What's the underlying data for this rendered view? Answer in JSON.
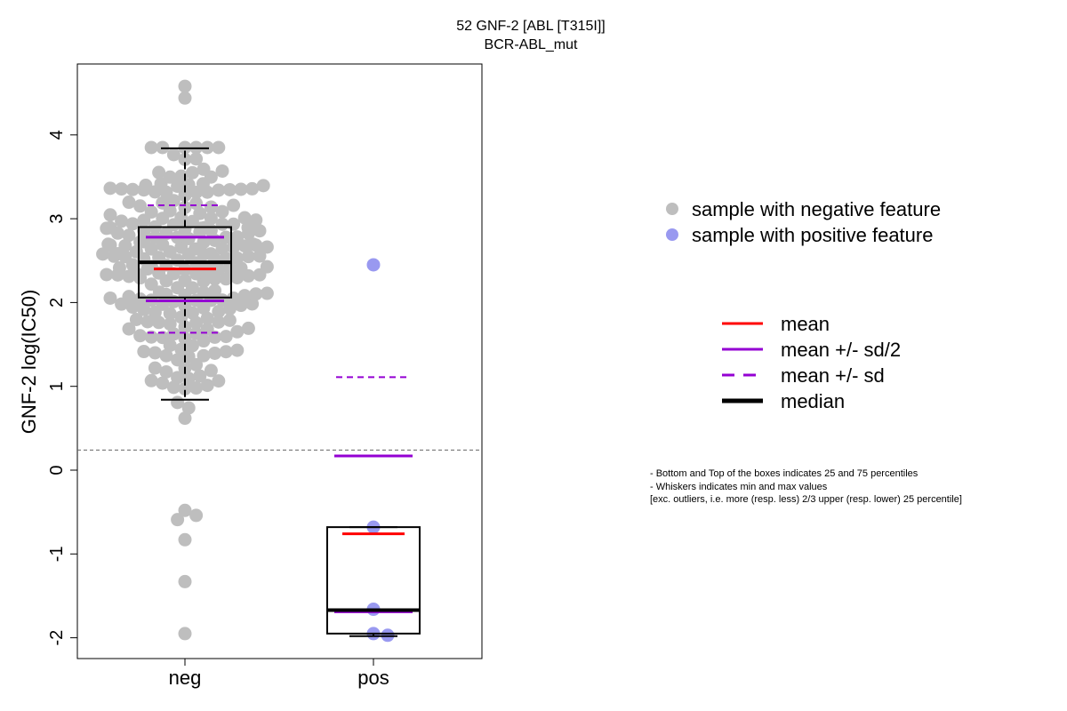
{
  "chart_data": {
    "type": "scatter",
    "title": "52 GNF-2 [ABL [T315I]]",
    "subtitle": "BCR-ABL_mut",
    "ylabel": "GNF-2 log(IC50)",
    "xlabel": "",
    "categories": [
      "neg",
      "pos"
    ],
    "ylim": [
      -2.25,
      4.8
    ],
    "yticks": [
      -2,
      -1,
      0,
      1,
      2,
      3,
      4
    ],
    "threshold": 0.24,
    "grid": false,
    "legend_position": "right",
    "colors": {
      "neg": "#bebebe",
      "pos": "#9999f0",
      "mean": "#ff0000",
      "sd": "#9400d3",
      "median": "#000000",
      "threshold": "#666666"
    },
    "groups": [
      {
        "name": "neg",
        "box": {
          "q1": 2.06,
          "median": 2.48,
          "q3": 2.9,
          "whisker_low": 0.84,
          "whisker_high": 3.84
        },
        "mean": 2.4,
        "mean_minus_half_sd": 2.02,
        "mean_plus_half_sd": 2.78,
        "mean_minus_sd": 1.64,
        "mean_plus_sd": 3.16,
        "outliers": [
          4.58,
          4.44,
          -0.48,
          -0.54,
          -0.59,
          -0.83,
          -1.33,
          -1.95
        ]
      },
      {
        "name": "pos",
        "box": {
          "q1": -1.95,
          "median": -1.67,
          "q3": -0.68,
          "whisker_low": -1.98,
          "whisker_high": -0.68
        },
        "mean": -0.76,
        "mean_minus_half_sd": -1.69,
        "mean_plus_half_sd": 0.17,
        "mean_minus_sd": null,
        "mean_plus_sd": 1.11,
        "points": [
          2.45,
          -0.68,
          -1.66,
          -1.95,
          -1.97
        ]
      }
    ]
  },
  "legend": {
    "samples": [
      {
        "label": "sample with negative feature",
        "color": "#bebebe"
      },
      {
        "label": "sample with positive feature",
        "color": "#9999f0"
      }
    ],
    "lines": [
      {
        "label": "mean",
        "color": "#ff0000",
        "dashed": false
      },
      {
        "label": "mean +/- sd/2",
        "color": "#9400d3",
        "dashed": false
      },
      {
        "label": "mean +/- sd",
        "color": "#9400d3",
        "dashed": true
      },
      {
        "label": "median",
        "color": "#000000",
        "dashed": false
      }
    ]
  },
  "notes": [
    "- Bottom and Top of the boxes indicates 25 and 75 percentiles",
    "- Whiskers indicates min and max values",
    "[exc. outliers, i.e. more (resp. less) 2/3 upper (resp. lower) 25 percentile]"
  ]
}
